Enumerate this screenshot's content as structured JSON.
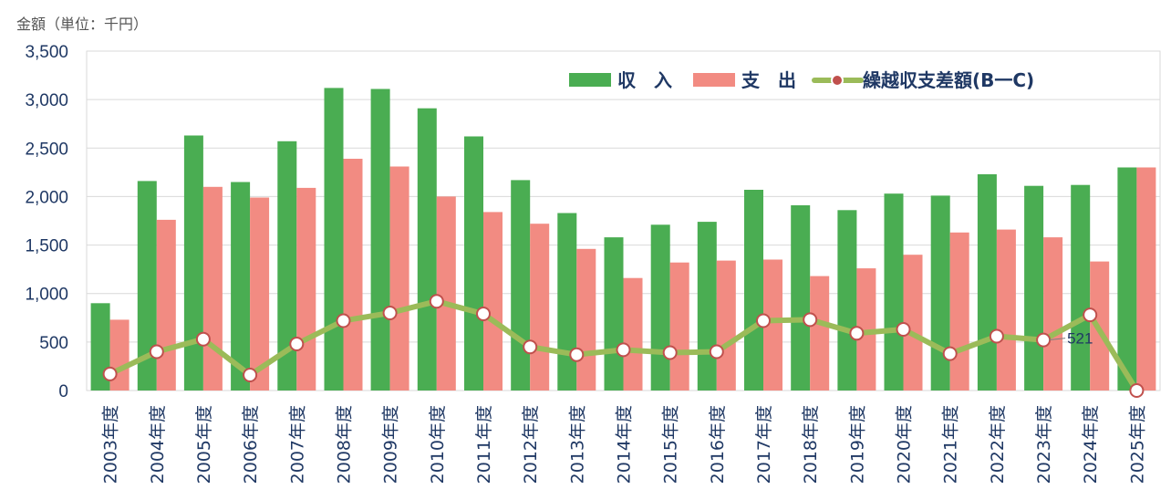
{
  "chart_data": {
    "type": "bar",
    "unit_label": "金額（単位：千円）",
    "categories": [
      "2003年度",
      "2004年度",
      "2005年度",
      "2006年度",
      "2007年度",
      "2008年度",
      "2009年度",
      "2010年度",
      "2011年度",
      "2012年度",
      "2013年度",
      "2014年度",
      "2015年度",
      "2016年度",
      "2017年度",
      "2018年度",
      "2019年度",
      "2020年度",
      "2021年度",
      "2022年度",
      "2023年度",
      "2024年度",
      "2025年度"
    ],
    "series": [
      {
        "name": "収　入",
        "type": "bar",
        "color": "#4aad52",
        "values": [
          900,
          2160,
          2630,
          2150,
          2570,
          3120,
          3110,
          2910,
          2620,
          2170,
          1830,
          1580,
          1710,
          1740,
          2070,
          1910,
          1860,
          2030,
          2010,
          2230,
          2110,
          2120,
          2300
        ]
      },
      {
        "name": "支　出",
        "type": "bar",
        "color": "#f28b82",
        "values": [
          730,
          1760,
          2100,
          1990,
          2090,
          2390,
          2310,
          2000,
          1840,
          1720,
          1460,
          1160,
          1320,
          1340,
          1350,
          1180,
          1260,
          1400,
          1630,
          1660,
          1580,
          1330,
          2300
        ]
      },
      {
        "name": "繰越収支差額(B一C)",
        "type": "line",
        "color": "#9bbb59",
        "marker_color": "#c0504d",
        "values": [
          170,
          400,
          530,
          160,
          480,
          720,
          800,
          920,
          790,
          450,
          370,
          420,
          390,
          400,
          720,
          730,
          590,
          630,
          380,
          560,
          521,
          780,
          0
        ]
      }
    ],
    "ylim": [
      0,
      3500
    ],
    "yticks": [
      "0",
      "500",
      "1,000",
      "1,500",
      "2,000",
      "2,500",
      "3,000",
      "3,500"
    ],
    "ytick_values": [
      0,
      500,
      1000,
      1500,
      2000,
      2500,
      3000,
      3500
    ],
    "annotations": [
      {
        "category": "2023年度",
        "series": "繰越収支差額(B一C)",
        "text": "521"
      }
    ],
    "legend": {
      "placement": "top-right"
    },
    "grid": {
      "y": true,
      "x": false
    }
  }
}
